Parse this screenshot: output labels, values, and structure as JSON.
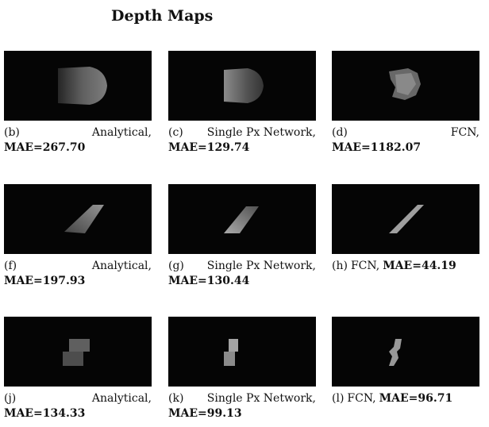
{
  "title": "Depth Maps",
  "panels": [
    {
      "label": "(b)",
      "method": "Analytical,",
      "mae": "MAE=267.70",
      "inline": false
    },
    {
      "label": "(c)",
      "method": "Single Px Network,",
      "mae": "MAE=129.74",
      "inline": false
    },
    {
      "label": "(d)",
      "method": "FCN,",
      "mae": "MAE=1182.07",
      "inline": false
    },
    {
      "label": "(f)",
      "method": "Analytical,",
      "mae": "MAE=197.93",
      "inline": false
    },
    {
      "label": "(g)",
      "method": "Single Px Network,",
      "mae": "MAE=130.44",
      "inline": false
    },
    {
      "label": "(h)",
      "method": "FCN,",
      "mae": "MAE=44.19",
      "inline": true
    },
    {
      "label": "(j)",
      "method": "Analytical,",
      "mae": "MAE=134.33",
      "inline": false
    },
    {
      "label": "(k)",
      "method": "Single Px Network,",
      "mae": "MAE=99.13",
      "inline": false
    },
    {
      "label": "(l)",
      "method": "FCN,",
      "mae": "MAE=96.71",
      "inline": true
    }
  ]
}
